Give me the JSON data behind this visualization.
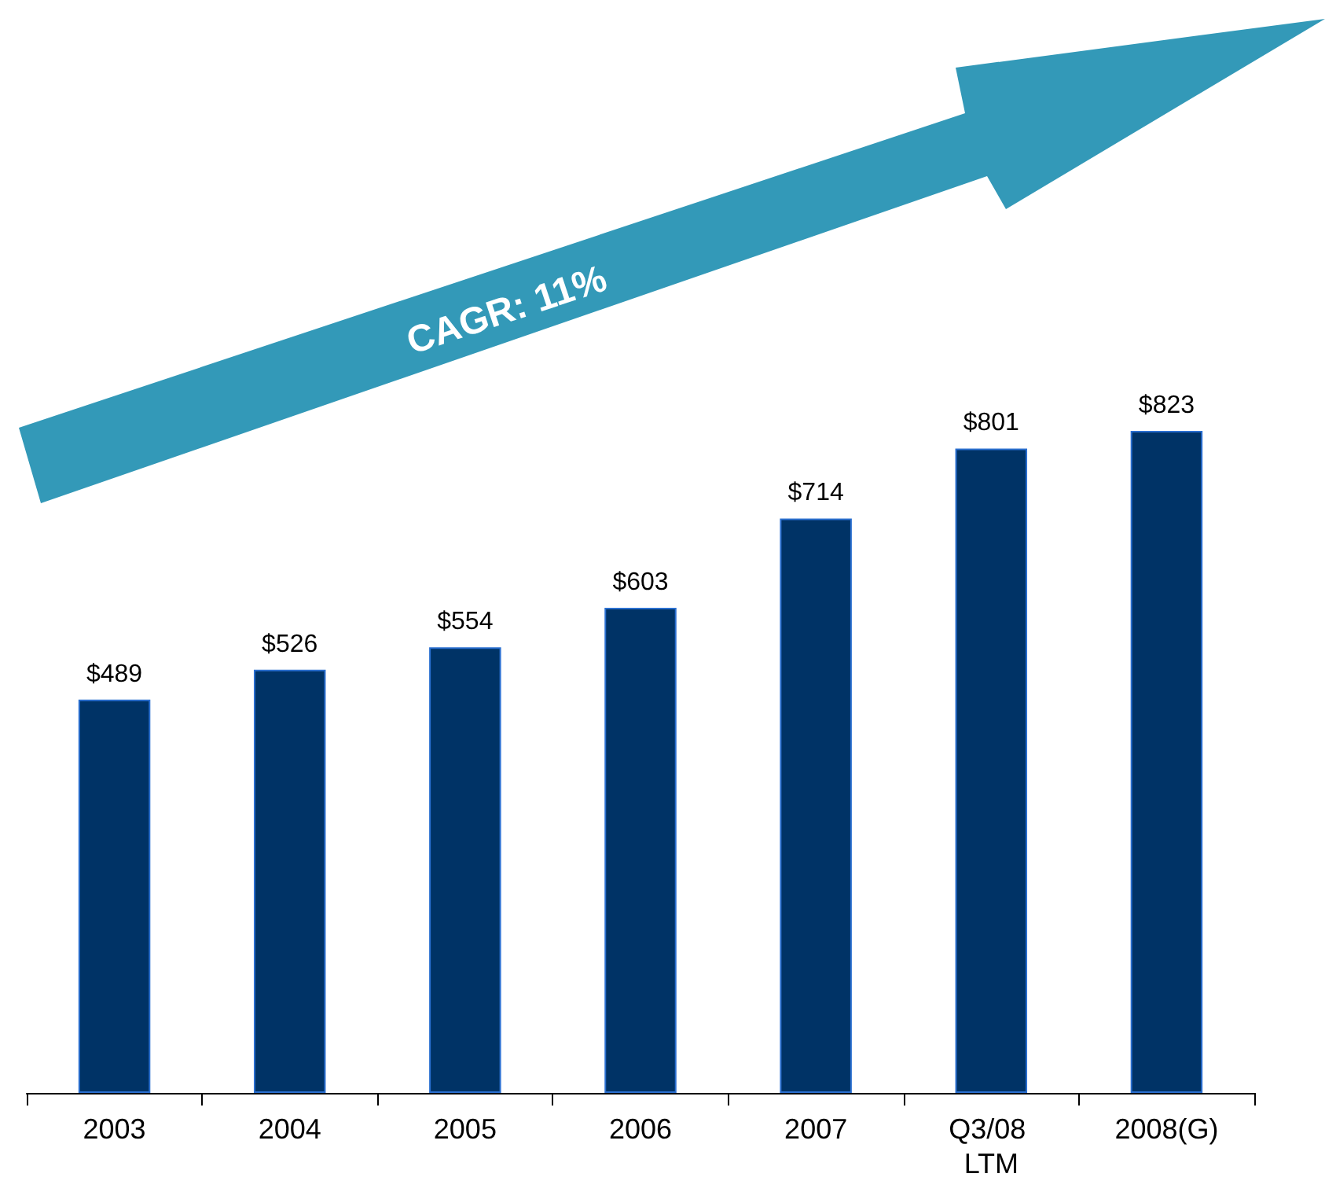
{
  "chart_data": {
    "type": "bar",
    "tick_labels": "x",
    "categories": [
      "2003",
      "2004",
      "2005",
      "2006",
      "2007",
      "Q3/08 LTM",
      "2008(G)"
    ],
    "values": [
      489,
      526,
      554,
      603,
      714,
      801,
      823
    ],
    "value_labels": [
      "$489",
      "$526",
      "$554",
      "$603",
      "$714",
      "$801",
      "$823"
    ],
    "color": "#003366",
    "annotations": [
      "CAGR: 11%"
    ]
  }
}
